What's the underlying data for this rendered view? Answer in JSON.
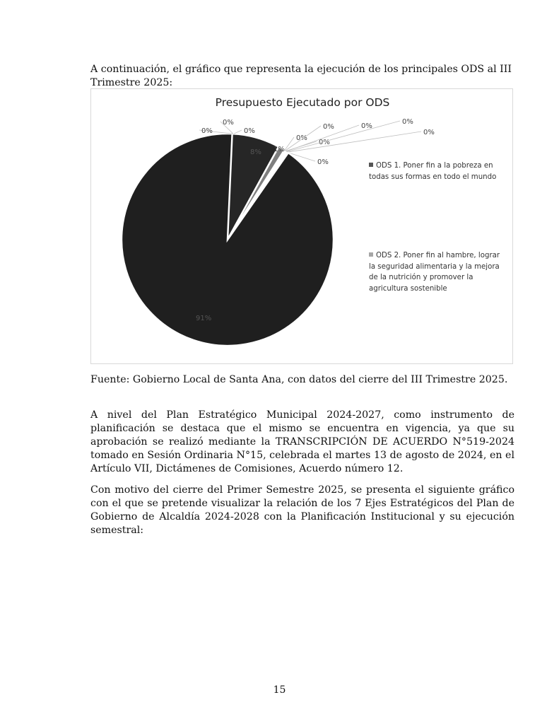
{
  "intro": "A continuación, el gráfico que representa la ejecución de los principales ODS al III Trimestre 2025:",
  "chart_data": {
    "type": "pie",
    "title": "Presupuesto Ejecutado por ODS",
    "legend_placement": "right",
    "categories": [
      "ODS 1. Poner fin a la pobreza en todas sus formas en todo el mundo",
      "ODS 2. Poner fin al hambre, lograr la seguridad alimentaria y la mejora de la nutrición y promover la agricultura sostenible"
    ],
    "slices": [
      {
        "value": 8,
        "label": "8%",
        "color": "#262626"
      },
      {
        "value": 1,
        "label": "1%",
        "color": "#7f7f7f"
      },
      {
        "value": 0,
        "label": "0%",
        "color": "#555555"
      },
      {
        "value": 0,
        "label": "0%",
        "color": "#555555"
      },
      {
        "value": 0,
        "label": "0%",
        "color": "#555555"
      },
      {
        "value": 0,
        "label": "0%",
        "color": "#555555"
      },
      {
        "value": 0,
        "label": "0%",
        "color": "#555555"
      },
      {
        "value": 0,
        "label": "0%",
        "color": "#555555"
      },
      {
        "value": 0,
        "label": "0%",
        "color": "#555555"
      },
      {
        "value": 91,
        "label": "91%",
        "color": "#1f1f1f"
      },
      {
        "value": 0,
        "label": "0%",
        "color": "#555555"
      },
      {
        "value": 0,
        "label": "0%",
        "color": "#555555"
      },
      {
        "value": 0,
        "label": "0%",
        "color": "#555555"
      }
    ],
    "legend_colors": [
      "#555555",
      "#a6a6a6"
    ]
  },
  "source": "Fuente: Gobierno Local de Santa Ana, con datos del cierre del III Trimestre 2025.",
  "para1": "A nivel del Plan Estratégico Municipal 2024-2027, como instrumento de planificación se destaca que el mismo se encuentra en vigencia, ya que su aprobación se realizó mediante la TRANSCRIPCIÓN DE ACUERDO N°519-2024 tomado en Sesión Ordinaria N°15, celebrada el martes 13 de agosto de 2024, en el Artículo VII, Dictámenes de Comisiones, Acuerdo número 12.",
  "para2": "Con motivo del cierre del Primer Semestre 2025, se presenta el siguiente gráfico con el que se pretende visualizar la relación de los 7 Ejes Estratégicos del Plan de Gobierno de Alcaldía 2024-2028 con la Planificación Institucional y su ejecución semestral:",
  "page_number": "15"
}
